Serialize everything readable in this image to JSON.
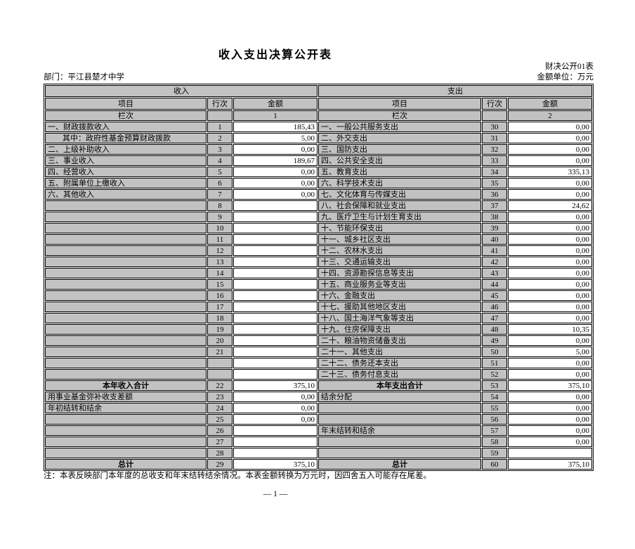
{
  "page": {
    "title": "收入支出决算公开表",
    "form_code": "财决公开01表",
    "department": "部门：平江县楚才中学",
    "unit_label": "金额单位：万元",
    "note": "注：本表反映部门本年度的总收支和年末结转结余情况。本表金额转换为万元时，因四舍五入可能存在尾差。",
    "page_number": "— 1 —"
  },
  "colors": {
    "cell_gray": "#c2c2c2",
    "border": "#000000",
    "background": "#ffffff"
  },
  "table": {
    "income_header": "收入",
    "expense_header": "支出",
    "col_item": "项目",
    "col_row": "行次",
    "col_amount": "金额",
    "col_index_label": "栏次",
    "income_col_index": "1",
    "expense_col_index": "2",
    "rows": [
      {
        "l": [
          "一、财政拨款收入",
          "1",
          "185,43",
          ""
        ],
        "r": [
          "一、一般公共服务支出",
          "30",
          "0,00",
          ""
        ]
      },
      {
        "l": [
          "其中：政府性基金预算财政拨款",
          "2",
          "5,00",
          "i"
        ],
        "r": [
          "二、外交支出",
          "31",
          "0,00",
          ""
        ]
      },
      {
        "l": [
          "二、上级补助收入",
          "3",
          "0,00",
          ""
        ],
        "r": [
          "三、国防支出",
          "32",
          "0,00",
          ""
        ]
      },
      {
        "l": [
          "三、事业收入",
          "4",
          "189,67",
          ""
        ],
        "r": [
          "四、公共安全支出",
          "33",
          "0,00",
          ""
        ]
      },
      {
        "l": [
          "四、经营收入",
          "5",
          "0,00",
          ""
        ],
        "r": [
          "五、教育支出",
          "34",
          "335,13",
          ""
        ]
      },
      {
        "l": [
          "五、附属单位上缴收入",
          "6",
          "0,00",
          ""
        ],
        "r": [
          "六、科学技术支出",
          "35",
          "0,00",
          ""
        ]
      },
      {
        "l": [
          "六、其他收入",
          "7",
          "0,00",
          ""
        ],
        "r": [
          "七、文化体育与传媒支出",
          "36",
          "0,00",
          ""
        ]
      },
      {
        "l": [
          "",
          "8",
          "",
          ""
        ],
        "r": [
          "八、社会保障和就业支出",
          "37",
          "24,62",
          ""
        ]
      },
      {
        "l": [
          "",
          "9",
          "",
          ""
        ],
        "r": [
          "九、医疗卫生与计划生育支出",
          "38",
          "0,00",
          ""
        ]
      },
      {
        "l": [
          "",
          "10",
          "",
          ""
        ],
        "r": [
          "十、节能环保支出",
          "39",
          "0,00",
          ""
        ]
      },
      {
        "l": [
          "",
          "11",
          "",
          ""
        ],
        "r": [
          "十一、城乡社区支出",
          "40",
          "0,00",
          ""
        ]
      },
      {
        "l": [
          "",
          "12",
          "",
          ""
        ],
        "r": [
          "十二、农林水支出",
          "41",
          "0,00",
          ""
        ]
      },
      {
        "l": [
          "",
          "13",
          "",
          ""
        ],
        "r": [
          "十三、交通运输支出",
          "42",
          "0,00",
          ""
        ]
      },
      {
        "l": [
          "",
          "14",
          "",
          ""
        ],
        "r": [
          "十四、资源勘探信息等支出",
          "43",
          "0,00",
          ""
        ]
      },
      {
        "l": [
          "",
          "15",
          "",
          ""
        ],
        "r": [
          "十五、商业服务业等支出",
          "44",
          "0,00",
          ""
        ]
      },
      {
        "l": [
          "",
          "16",
          "",
          ""
        ],
        "r": [
          "十六、金融支出",
          "45",
          "0,00",
          ""
        ]
      },
      {
        "l": [
          "",
          "17",
          "",
          ""
        ],
        "r": [
          "十七、援助其他地区支出",
          "46",
          "0,00",
          ""
        ]
      },
      {
        "l": [
          "",
          "18",
          "",
          ""
        ],
        "r": [
          "十八、国土海洋气象等支出",
          "47",
          "0,00",
          ""
        ]
      },
      {
        "l": [
          "",
          "19",
          "",
          ""
        ],
        "r": [
          "十九、住房保障支出",
          "48",
          "10,35",
          ""
        ]
      },
      {
        "l": [
          "",
          "20",
          "",
          ""
        ],
        "r": [
          "二十、粮油物资储备支出",
          "49",
          "0,00",
          ""
        ]
      },
      {
        "l": [
          "",
          "21",
          "",
          ""
        ],
        "r": [
          "二十一、其他支出",
          "50",
          "5,00",
          ""
        ]
      },
      {
        "l": [
          "",
          "",
          "",
          ""
        ],
        "r": [
          "二十二、债务还本支出",
          "51",
          "0,00",
          ""
        ]
      },
      {
        "l": [
          "",
          "",
          "",
          ""
        ],
        "r": [
          "二十三、债务付息支出",
          "52",
          "0,00",
          ""
        ]
      },
      {
        "l": [
          "本年收入合计",
          "22",
          "375,10",
          "b"
        ],
        "r": [
          "本年支出合计",
          "53",
          "375,10",
          "b"
        ]
      },
      {
        "l": [
          "用事业基金弥补收支差额",
          "23",
          "0,00",
          ""
        ],
        "r": [
          "结余分配",
          "54",
          "0,00",
          ""
        ]
      },
      {
        "l": [
          "年初结转和结余",
          "24",
          "0,00",
          ""
        ],
        "r": [
          "",
          "55",
          "0,00",
          ""
        ]
      },
      {
        "l": [
          "",
          "25",
          "0,00",
          ""
        ],
        "r": [
          "",
          "56",
          "0,00",
          ""
        ]
      },
      {
        "l": [
          "",
          "26",
          "",
          ""
        ],
        "r": [
          "年末结转和结余",
          "57",
          "0,00",
          ""
        ]
      },
      {
        "l": [
          "",
          "27",
          "",
          ""
        ],
        "r": [
          "",
          "58",
          "0,00",
          ""
        ]
      },
      {
        "l": [
          "",
          "28",
          "",
          ""
        ],
        "r": [
          "",
          "59",
          "",
          ""
        ]
      },
      {
        "l": [
          "总计",
          "29",
          "375,10",
          "b"
        ],
        "r": [
          "总计",
          "60",
          "375,10",
          "b"
        ]
      }
    ]
  }
}
